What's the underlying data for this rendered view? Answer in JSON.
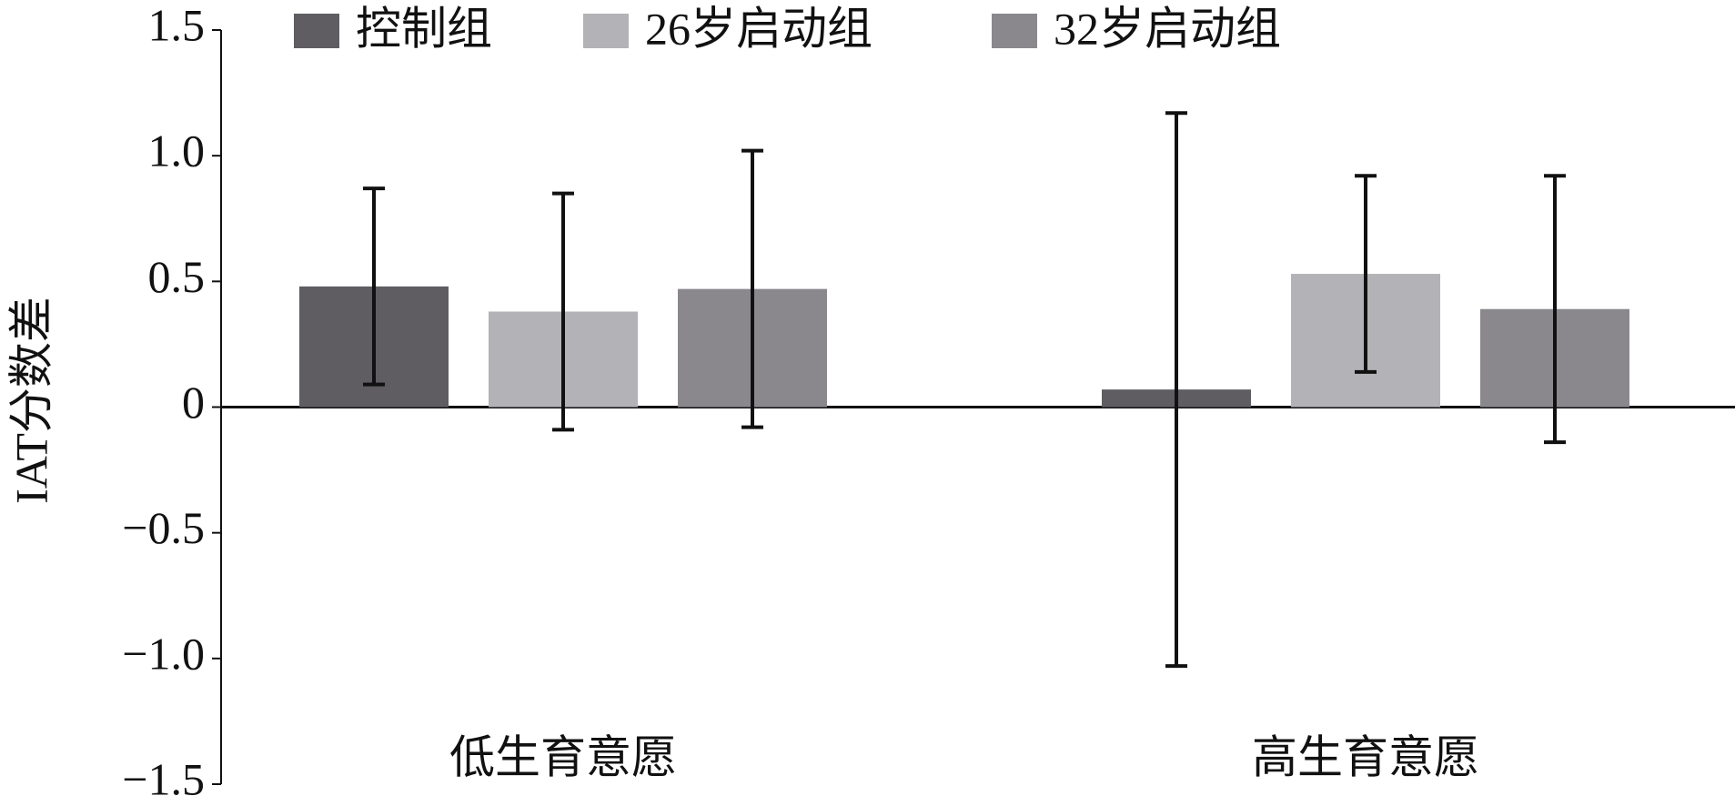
{
  "chart_data": {
    "type": "bar",
    "y_label": "IAT分数差",
    "categories": [
      "低生育意愿",
      "高生育意愿"
    ],
    "series": [
      {
        "name": "控制组",
        "color": "#5f5d62",
        "values": [
          0.48,
          0.07
        ],
        "errors": [
          0.39,
          1.1
        ]
      },
      {
        "name": "26岁启动组",
        "color": "#b3b2b6",
        "values": [
          0.38,
          0.53
        ],
        "errors": [
          0.47,
          0.39
        ]
      },
      {
        "name": "32岁启动组",
        "color": "#8a888d",
        "values": [
          0.47,
          0.39
        ],
        "errors": [
          0.55,
          0.53
        ]
      }
    ],
    "ylim": [
      -1.5,
      1.5
    ],
    "yticks": [
      {
        "value": -1.5,
        "label": "−1.5"
      },
      {
        "value": -1,
        "label": "−1.0"
      },
      {
        "value": -0.5,
        "label": "−0.5"
      },
      0,
      0.5,
      {
        "value": 1,
        "label": "1.0"
      },
      1.5
    ],
    "legend": "top"
  }
}
